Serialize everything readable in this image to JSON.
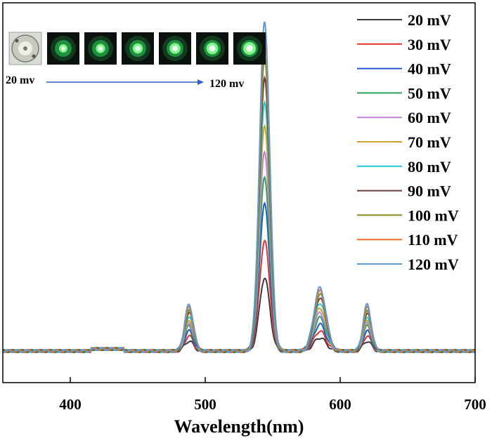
{
  "chart_data": {
    "type": "line",
    "xlabel": "Wavelength(nm)",
    "ylabel": "",
    "xlim": [
      350,
      700
    ],
    "ylim": [
      0,
      1
    ],
    "xticks": [
      400,
      500,
      600,
      700
    ],
    "grid": false,
    "legend_position": "top-right",
    "peaks_nm": [
      488,
      544,
      585,
      620
    ],
    "series": [
      {
        "name": "20 mV",
        "color": "#3a3a3a",
        "amplitudes": [
          0.03,
          0.22,
          0.04,
          0.03
        ]
      },
      {
        "name": "30 mV",
        "color": "#e8312f",
        "amplitudes": [
          0.045,
          0.33,
          0.06,
          0.045
        ]
      },
      {
        "name": "40 mV",
        "color": "#1f5bd0",
        "amplitudes": [
          0.06,
          0.44,
          0.08,
          0.06
        ]
      },
      {
        "name": "50 mV",
        "color": "#2ea35a",
        "amplitudes": [
          0.075,
          0.52,
          0.1,
          0.075
        ]
      },
      {
        "name": "60 mV",
        "color": "#c57ee0",
        "amplitudes": [
          0.085,
          0.6,
          0.115,
          0.085
        ]
      },
      {
        "name": "70 mV",
        "color": "#c9a227",
        "amplitudes": [
          0.095,
          0.68,
          0.13,
          0.095
        ]
      },
      {
        "name": "80 mV",
        "color": "#21c8d2",
        "amplitudes": [
          0.105,
          0.75,
          0.145,
          0.105
        ]
      },
      {
        "name": "90 mV",
        "color": "#6e3b3b",
        "amplitudes": [
          0.115,
          0.82,
          0.16,
          0.115
        ]
      },
      {
        "name": "100 mV",
        "color": "#8a8a1a",
        "amplitudes": [
          0.12,
          0.88,
          0.17,
          0.12
        ]
      },
      {
        "name": "110 mV",
        "color": "#f06d24",
        "amplitudes": [
          0.13,
          0.95,
          0.18,
          0.13
        ]
      },
      {
        "name": "120 mV",
        "color": "#5b9bd5",
        "amplitudes": [
          0.14,
          0.99,
          0.19,
          0.14
        ]
      }
    ],
    "inset": {
      "start_label": "20 mv",
      "end_label": "120 mv",
      "photo_count": 7
    }
  }
}
